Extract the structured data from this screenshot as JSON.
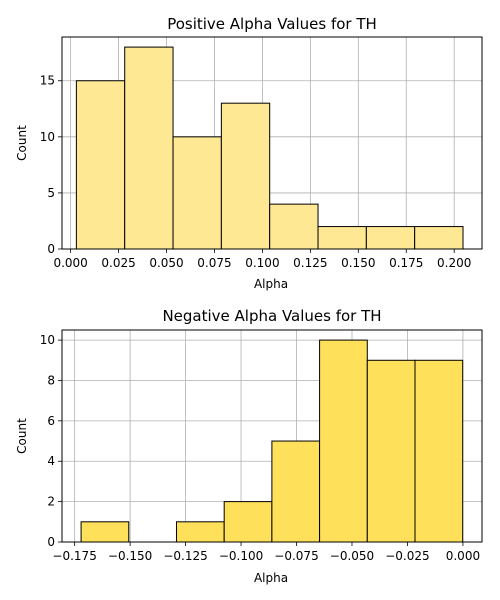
{
  "chart_data": [
    {
      "type": "bar",
      "title": "Positive Alpha Values for TH",
      "xlabel": "Alpha",
      "ylabel": "Count",
      "xlim": [
        -0.0045,
        0.2145
      ],
      "ylim": [
        0,
        18.9
      ],
      "bar_color": "#ffe894",
      "edge_color": "#000000",
      "grid": true,
      "bins": [
        {
          "x0": 0.003,
          "x1": 0.0282,
          "count": 15
        },
        {
          "x0": 0.0282,
          "x1": 0.0534,
          "count": 18
        },
        {
          "x0": 0.0534,
          "x1": 0.0786,
          "count": 10
        },
        {
          "x0": 0.0786,
          "x1": 0.1038,
          "count": 13
        },
        {
          "x0": 0.1038,
          "x1": 0.129,
          "count": 4
        },
        {
          "x0": 0.129,
          "x1": 0.1542,
          "count": 2
        },
        {
          "x0": 0.1542,
          "x1": 0.1794,
          "count": 2
        },
        {
          "x0": 0.1794,
          "x1": 0.2046,
          "count": 2
        }
      ],
      "xticks": [
        0.0,
        0.025,
        0.05,
        0.075,
        0.1,
        0.125,
        0.15,
        0.175,
        0.2
      ],
      "xtick_labels": [
        "0.000",
        "0.025",
        "0.050",
        "0.075",
        "0.100",
        "0.125",
        "0.150",
        "0.175",
        "0.200"
      ],
      "yticks": [
        0,
        5,
        10,
        15
      ],
      "ytick_labels": [
        "0",
        "5",
        "10",
        "15"
      ]
    },
    {
      "type": "bar",
      "title": "Negative Alpha Values for TH",
      "xlabel": "Alpha",
      "ylabel": "Count",
      "xlim": [
        -0.1807,
        0.0086
      ],
      "ylim": [
        0,
        10.5
      ],
      "bar_color": "#ffe05a",
      "edge_color": "#000000",
      "grid": true,
      "bins": [
        {
          "x0": -0.1721,
          "x1": -0.1506,
          "count": 1
        },
        {
          "x0": -0.1506,
          "x1": -0.1291,
          "count": 0
        },
        {
          "x0": -0.1291,
          "x1": -0.1076,
          "count": 1
        },
        {
          "x0": -0.1076,
          "x1": -0.0861,
          "count": 2
        },
        {
          "x0": -0.0861,
          "x1": -0.0646,
          "count": 5
        },
        {
          "x0": -0.0646,
          "x1": -0.0431,
          "count": 10
        },
        {
          "x0": -0.0431,
          "x1": -0.0216,
          "count": 9
        },
        {
          "x0": -0.0216,
          "x1": -0.0001,
          "count": 9
        }
      ],
      "xticks": [
        -0.175,
        -0.15,
        -0.125,
        -0.1,
        -0.075,
        -0.05,
        -0.025,
        0.0
      ],
      "xtick_labels": [
        "−0.175",
        "−0.150",
        "−0.125",
        "−0.100",
        "−0.075",
        "−0.050",
        "−0.025",
        "0.000"
      ],
      "yticks": [
        0,
        2,
        4,
        6,
        8,
        10
      ],
      "ytick_labels": [
        "0",
        "2",
        "4",
        "6",
        "8",
        "10"
      ]
    }
  ]
}
